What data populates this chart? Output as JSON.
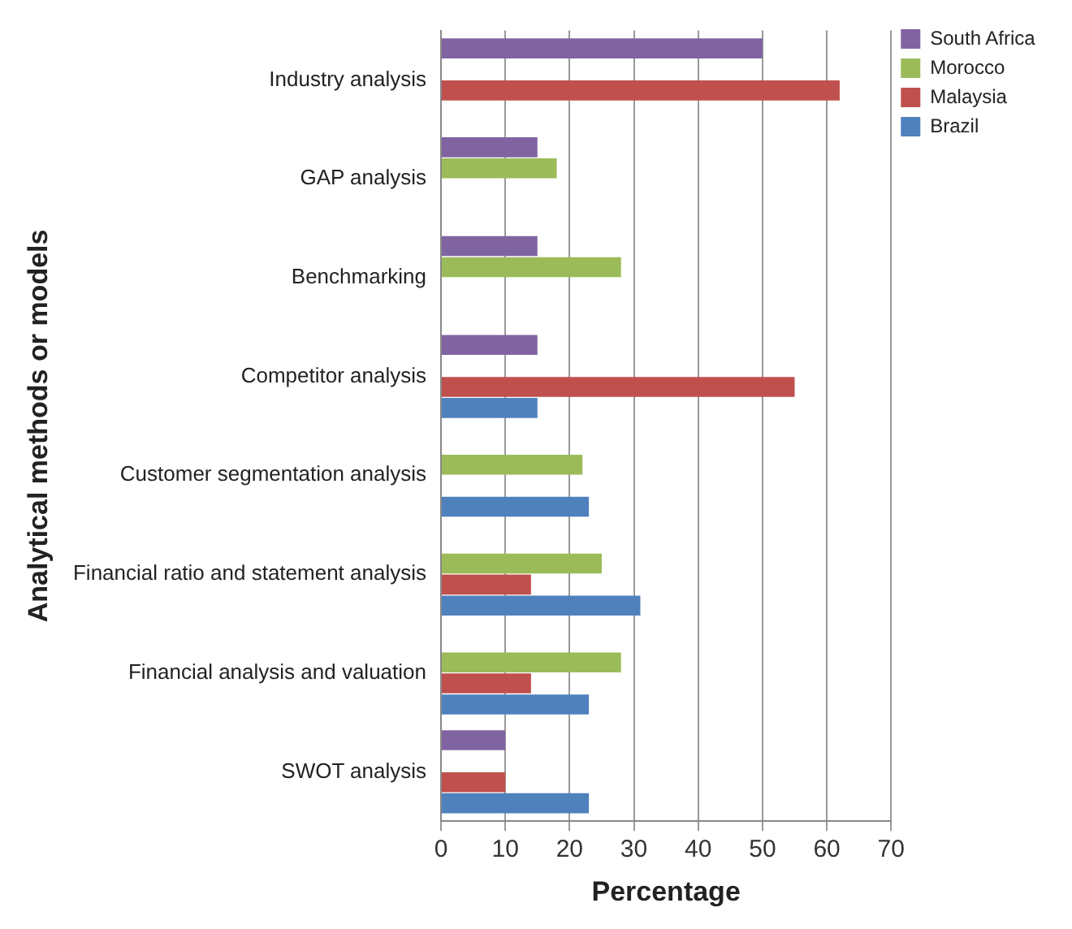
{
  "chart_data": {
    "type": "bar",
    "orientation": "horizontal",
    "xlabel": "Percentage",
    "ylabel": "Analytical methods or models",
    "categories": [
      "Industry analysis",
      "GAP analysis",
      "Benchmarking",
      "Competitor analysis",
      "Customer segmentation analysis",
      "Financial ratio and statement analysis",
      "Financial analysis and valuation",
      "SWOT analysis"
    ],
    "series": [
      {
        "name": "South Africa",
        "color": "#8064a2",
        "values": [
          50,
          15,
          15,
          15,
          null,
          null,
          null,
          10
        ]
      },
      {
        "name": "Morocco",
        "color": "#9bbb59",
        "values": [
          null,
          18,
          28,
          null,
          22,
          25,
          28,
          null
        ]
      },
      {
        "name": "Malaysia",
        "color": "#c0504d",
        "values": [
          62,
          null,
          null,
          55,
          null,
          14,
          14,
          10
        ]
      },
      {
        "name": "Brazil",
        "color": "#4f81bd",
        "values": [
          null,
          null,
          null,
          15,
          23,
          31,
          23,
          23
        ]
      }
    ],
    "xlim": [
      0,
      70
    ],
    "xticks": [
      0,
      10,
      20,
      30,
      40,
      50,
      60,
      70
    ],
    "grid": "x",
    "legend": "top right"
  }
}
